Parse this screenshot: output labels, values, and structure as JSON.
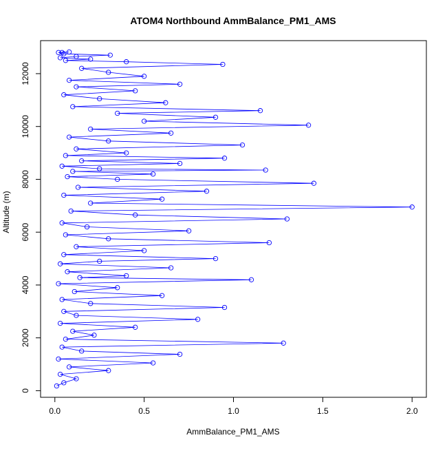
{
  "chart_data": {
    "type": "line",
    "title": "ATOM4 Northbound AmmBalance_PM1_AMS",
    "xlabel": "AmmBalance_PM1_AMS",
    "ylabel": "Altitude (m)",
    "xlim": [
      -0.08,
      2.08
    ],
    "ylim": [
      -250,
      13250
    ],
    "x_ticks": [
      0.0,
      0.5,
      1.0,
      1.5,
      2.0
    ],
    "x_tick_labels": [
      "0.0",
      "0.5",
      "1.0",
      "1.5",
      "2.0"
    ],
    "y_ticks": [
      0,
      2000,
      4000,
      6000,
      8000,
      10000,
      12000
    ],
    "y_tick_labels": [
      "0",
      "2000",
      "4000",
      "6000",
      "8000",
      "10000",
      "12000"
    ],
    "grid": false,
    "legend": "none",
    "marker": "open-circle",
    "color": "#0000ff",
    "series": [
      {
        "x": [
          0.01,
          0.05,
          0.12,
          0.03,
          0.3,
          0.08,
          0.55,
          0.02,
          0.7,
          0.15,
          0.04,
          1.28,
          0.06,
          0.22,
          0.1,
          0.45,
          0.03,
          0.8,
          0.12,
          0.05,
          0.95,
          0.2,
          0.04,
          0.6,
          0.11,
          0.35,
          0.02,
          1.1,
          0.14,
          0.4,
          0.07,
          0.65,
          0.03,
          0.25,
          0.9,
          0.05,
          0.5,
          0.12,
          1.2,
          0.3,
          0.06,
          0.75,
          0.18,
          0.04,
          1.3,
          0.45,
          0.09,
          2.0,
          0.2,
          0.6,
          0.05,
          0.85,
          0.13,
          1.45,
          0.35,
          0.07,
          0.55,
          0.1,
          1.18,
          0.25,
          0.04,
          0.7,
          0.15,
          0.95,
          0.06,
          0.4,
          0.12,
          1.05,
          0.3,
          0.08,
          0.65,
          0.2,
          1.42,
          0.5,
          0.9,
          0.35,
          1.15,
          0.1,
          0.62,
          0.25,
          0.05,
          0.45,
          0.12,
          0.7,
          0.08,
          0.5,
          0.3,
          0.15,
          0.94,
          0.4,
          0.06,
          0.2,
          0.03,
          0.12,
          0.31,
          0.05,
          0.02,
          0.08,
          0.04
        ],
        "y": [
          180,
          300,
          450,
          620,
          760,
          900,
          1050,
          1200,
          1380,
          1500,
          1650,
          1800,
          1950,
          2100,
          2250,
          2400,
          2550,
          2700,
          2850,
          3000,
          3150,
          3300,
          3450,
          3600,
          3750,
          3900,
          4050,
          4200,
          4280,
          4350,
          4500,
          4650,
          4800,
          4900,
          5000,
          5150,
          5300,
          5450,
          5600,
          5750,
          5900,
          6050,
          6200,
          6350,
          6500,
          6650,
          6800,
          6950,
          7100,
          7250,
          7400,
          7550,
          7700,
          7850,
          8000,
          8100,
          8200,
          8300,
          8350,
          8400,
          8500,
          8600,
          8700,
          8800,
          8900,
          9000,
          9150,
          9300,
          9450,
          9600,
          9750,
          9900,
          10050,
          10200,
          10350,
          10500,
          10600,
          10750,
          10900,
          11050,
          11200,
          11350,
          11500,
          11600,
          11750,
          11900,
          12050,
          12200,
          12350,
          12450,
          12500,
          12550,
          12600,
          12650,
          12700,
          12750,
          12800,
          12820,
          12800
        ]
      }
    ]
  }
}
